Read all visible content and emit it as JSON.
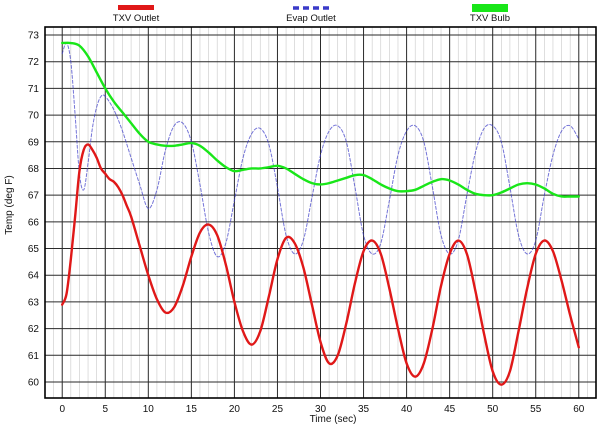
{
  "chart_data": {
    "type": "line",
    "title": "",
    "xlabel": "Time (sec)",
    "ylabel": "Temp (deg F)",
    "xlim": [
      -2,
      62
    ],
    "ylim": [
      59.4,
      73.3
    ],
    "x_ticks": [
      0,
      5,
      10,
      15,
      20,
      25,
      30,
      35,
      40,
      45,
      50,
      55,
      60
    ],
    "y_ticks": [
      60,
      61,
      62,
      63,
      64,
      65,
      66,
      67,
      68,
      69,
      70,
      71,
      72,
      73
    ],
    "grid": true,
    "legend_position": "top",
    "series": [
      {
        "name": "TXV Outlet",
        "color": "#e01818",
        "style": "solid",
        "x": [
          0,
          0.5,
          1,
          1.5,
          2,
          2.5,
          3,
          3.5,
          4,
          4.5,
          5,
          5.5,
          6,
          6.5,
          7,
          7.5,
          8,
          9,
          10,
          11,
          12,
          13,
          14,
          15,
          16,
          17,
          18,
          19,
          20,
          21,
          22,
          23,
          24,
          25,
          26,
          27,
          28,
          29,
          30,
          31,
          32,
          33,
          34,
          35,
          36,
          37,
          38,
          39,
          40,
          41,
          42,
          43,
          44,
          45,
          46,
          47,
          48,
          49,
          50,
          51,
          52,
          53,
          54,
          55,
          56,
          57,
          58,
          59,
          60
        ],
        "y": [
          62.9,
          63.3,
          64.6,
          66.2,
          67.9,
          68.7,
          68.9,
          68.7,
          68.4,
          68.0,
          67.8,
          67.6,
          67.5,
          67.3,
          67.0,
          66.6,
          66.2,
          65.1,
          64.0,
          63.1,
          62.6,
          62.8,
          63.6,
          64.7,
          65.6,
          65.9,
          65.5,
          64.4,
          63.0,
          61.9,
          61.4,
          61.9,
          63.2,
          64.6,
          65.4,
          65.2,
          64.3,
          62.9,
          61.5,
          60.7,
          61.0,
          62.2,
          63.7,
          64.9,
          65.3,
          64.8,
          63.5,
          62.0,
          60.7,
          60.2,
          60.7,
          62.0,
          63.6,
          64.8,
          65.3,
          64.8,
          63.4,
          61.8,
          60.4,
          59.9,
          60.4,
          61.9,
          63.5,
          64.8,
          65.3,
          64.9,
          63.8,
          62.5,
          61.3
        ]
      },
      {
        "name": "Evap Outlet",
        "color": "#3a3ac8",
        "style": "dashed",
        "x": [
          0,
          0.5,
          1,
          1.5,
          2,
          2.5,
          3,
          3.5,
          4,
          4.5,
          5,
          6,
          7,
          8,
          9,
          10,
          11,
          12,
          13,
          14,
          15,
          16,
          17,
          18,
          19,
          20,
          21,
          22,
          23,
          24,
          25,
          26,
          27,
          28,
          29,
          30,
          31,
          32,
          33,
          34,
          35,
          36,
          37,
          38,
          39,
          40,
          41,
          42,
          43,
          44,
          45,
          46,
          47,
          48,
          49,
          50,
          51,
          52,
          53,
          54,
          55,
          56,
          57,
          58,
          59,
          60
        ],
        "y": [
          72.3,
          72.7,
          72.0,
          70.0,
          67.8,
          67.2,
          68.2,
          69.5,
          70.3,
          70.7,
          70.7,
          70.2,
          69.4,
          68.4,
          67.4,
          66.5,
          67.2,
          68.7,
          69.6,
          69.7,
          69.0,
          67.4,
          65.6,
          64.7,
          65.2,
          66.8,
          68.4,
          69.3,
          69.5,
          68.9,
          67.3,
          65.5,
          64.8,
          65.3,
          66.9,
          68.5,
          69.4,
          69.6,
          69.0,
          67.3,
          65.5,
          64.8,
          65.2,
          66.8,
          68.5,
          69.4,
          69.6,
          69.0,
          67.3,
          65.5,
          64.8,
          65.3,
          67.0,
          68.6,
          69.5,
          69.6,
          69.0,
          67.3,
          65.5,
          64.8,
          65.3,
          67.0,
          68.5,
          69.4,
          69.6,
          69.1
        ]
      },
      {
        "name": "TXV Bulb",
        "color": "#19e619",
        "style": "solid",
        "x": [
          0,
          1,
          2,
          3,
          4,
          5,
          6,
          7,
          8,
          9,
          10,
          11,
          12,
          13,
          14,
          15,
          16,
          17,
          18,
          19,
          20,
          21,
          22,
          23,
          24,
          25,
          26,
          27,
          28,
          29,
          30,
          31,
          32,
          33,
          34,
          35,
          36,
          37,
          38,
          39,
          40,
          41,
          42,
          43,
          44,
          45,
          46,
          47,
          48,
          49,
          50,
          51,
          52,
          53,
          54,
          55,
          56,
          57,
          58,
          59,
          60
        ],
        "y": [
          72.7,
          72.7,
          72.6,
          72.2,
          71.6,
          71.0,
          70.5,
          70.1,
          69.7,
          69.3,
          69.0,
          68.9,
          68.85,
          68.85,
          68.9,
          68.95,
          68.85,
          68.6,
          68.3,
          68.05,
          67.9,
          67.95,
          68.0,
          68.0,
          68.05,
          68.1,
          68.0,
          67.8,
          67.6,
          67.45,
          67.4,
          67.45,
          67.55,
          67.65,
          67.75,
          67.75,
          67.6,
          67.4,
          67.25,
          67.15,
          67.15,
          67.2,
          67.35,
          67.5,
          67.6,
          67.55,
          67.4,
          67.2,
          67.05,
          67.0,
          67.0,
          67.1,
          67.25,
          67.4,
          67.45,
          67.4,
          67.25,
          67.05,
          66.95,
          66.95,
          66.95
        ]
      }
    ]
  }
}
